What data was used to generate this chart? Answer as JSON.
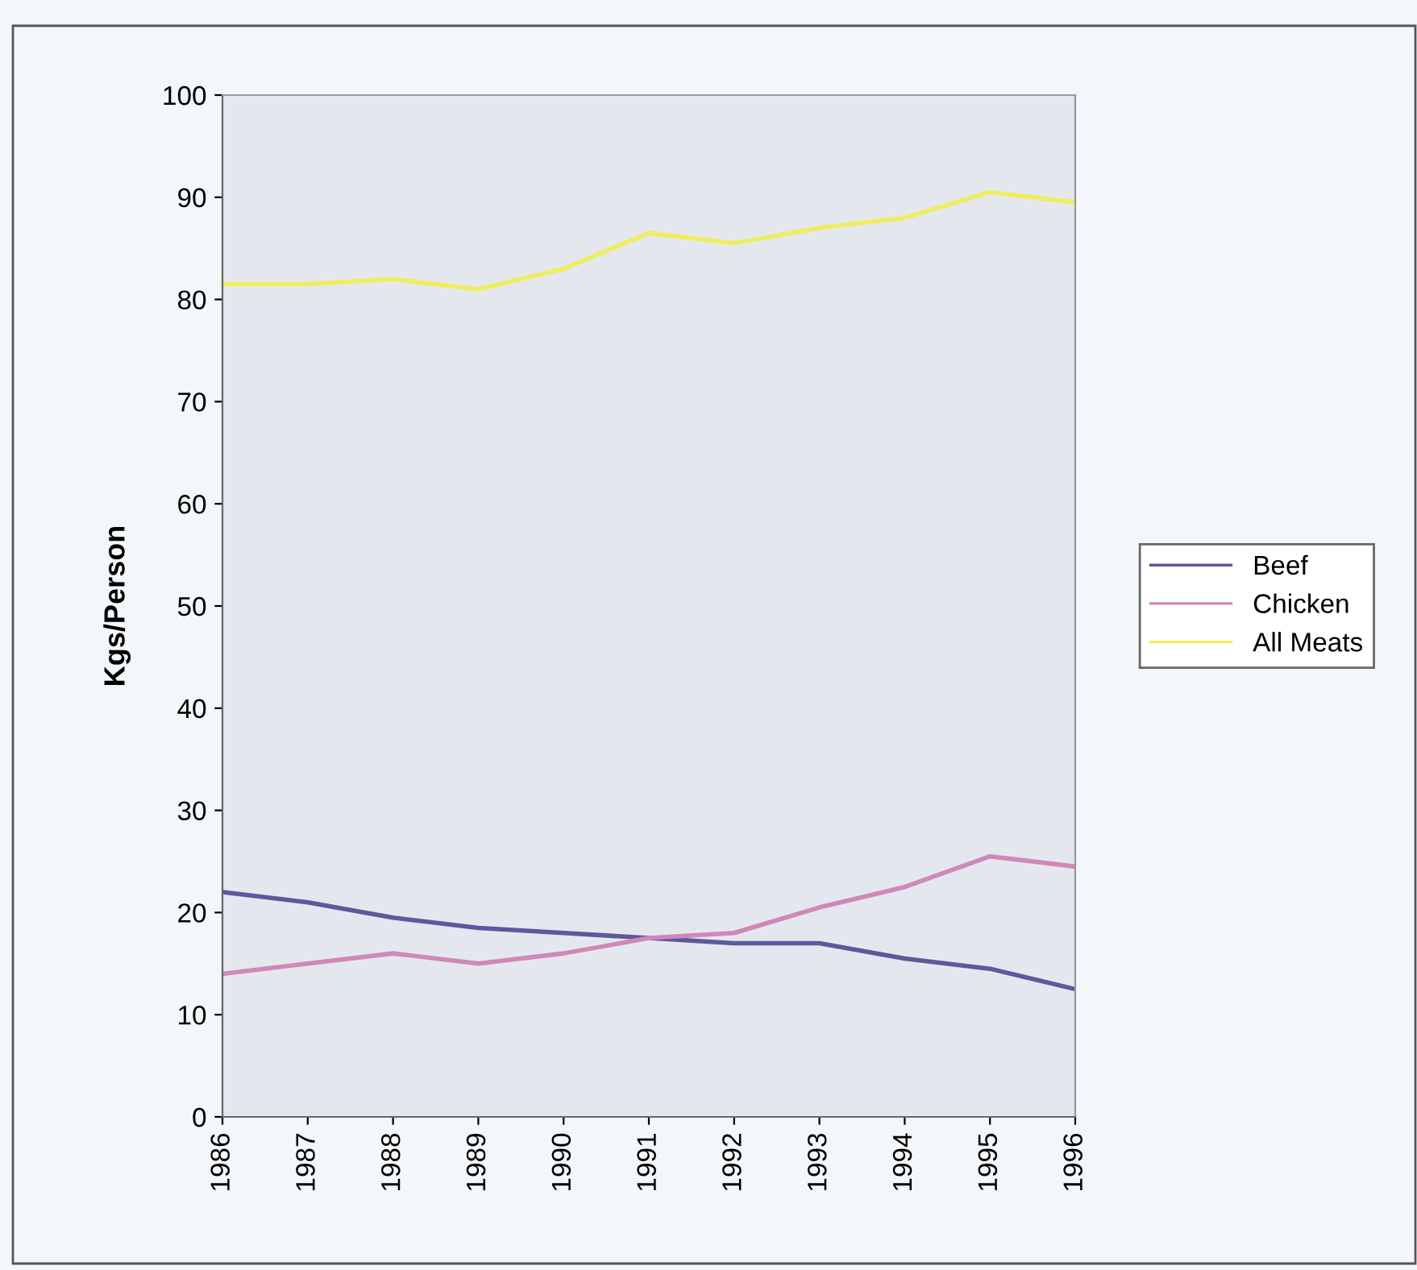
{
  "chart_data": {
    "type": "line",
    "ylabel": "Kgs/Person",
    "x": [
      1986,
      1987,
      1988,
      1989,
      1990,
      1991,
      1992,
      1993,
      1994,
      1995,
      1996
    ],
    "series": [
      {
        "name": "Beef",
        "color": "#5a5a9c",
        "values": [
          22,
          21,
          19.5,
          18.5,
          18,
          17.5,
          17,
          17,
          15.5,
          14.5,
          12.5
        ]
      },
      {
        "name": "Chicken",
        "color": "#d088b8",
        "values": [
          14,
          15,
          16,
          15,
          16,
          17.5,
          18,
          20.5,
          22.5,
          25.5,
          24.5
        ]
      },
      {
        "name": "All Meats",
        "color": "#eeee60",
        "values": [
          81.5,
          81.5,
          82,
          81,
          83,
          86.5,
          85.5,
          87,
          88,
          90.5,
          89.5
        ]
      }
    ],
    "xlim": [
      1986,
      1996
    ],
    "xticks": [
      1986,
      1987,
      1988,
      1989,
      1990,
      1991,
      1992,
      1993,
      1994,
      1995,
      1996
    ],
    "ylim": [
      0,
      100
    ],
    "yticks": [
      0,
      10,
      20,
      30,
      40,
      50,
      60,
      70,
      80,
      90,
      100
    ],
    "grid": false,
    "legend": "right",
    "marker": "none",
    "line_style": "solid"
  }
}
